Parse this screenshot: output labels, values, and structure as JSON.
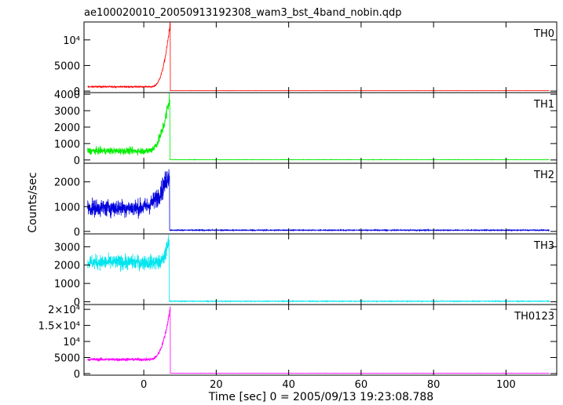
{
  "title": "ae100020010_20050913192308_wam3_bst_4band_nobin.qdp",
  "xlabel": "Time [sec] 0 = 2005/09/13 19:23:08.788",
  "ylabel": "Counts/sec",
  "chart_data": {
    "type": "line",
    "x_range": [
      -16.5,
      114
    ],
    "x_ticks": [
      0,
      20,
      40,
      60,
      80,
      100
    ],
    "x_tick_labels": [
      "0",
      "20",
      "40",
      "60",
      "80",
      "100"
    ],
    "panels": [
      {
        "name": "TH0",
        "color": "#ff0000",
        "y_range": [
          -300,
          13500
        ],
        "y_ticks": [
          0,
          5000,
          10000
        ],
        "y_tick_labels": [
          "0",
          "5000",
          "10⁴"
        ],
        "pre_level": 850,
        "rise_start": 2.0,
        "peak": 13500,
        "peak_time": 7.3,
        "post_level": 80,
        "noise": 120
      },
      {
        "name": "TH1",
        "color": "#00ee00",
        "y_range": [
          -200,
          4100
        ],
        "y_ticks": [
          0,
          1000,
          2000,
          3000,
          4000
        ],
        "y_tick_labels": [
          "0",
          "1000",
          "2000",
          "3000",
          "4000"
        ],
        "pre_level": 550,
        "rise_start": 0.5,
        "peak": 3900,
        "peak_time": 7.2,
        "post_level": 20,
        "noise": 200
      },
      {
        "name": "TH2",
        "color": "#0000dd",
        "y_range": [
          -100,
          2750
        ],
        "y_ticks": [
          0,
          1000,
          2000
        ],
        "y_tick_labels": [
          "0",
          "1000",
          "2000"
        ],
        "pre_level": 950,
        "rise_start": -2,
        "peak": 2400,
        "peak_time": 7.1,
        "post_level": 50,
        "noise": 330
      },
      {
        "name": "TH3",
        "color": "#00e5ee",
        "y_range": [
          -150,
          3700
        ],
        "y_ticks": [
          0,
          1000,
          2000,
          3000
        ],
        "y_tick_labels": [
          "0",
          "1000",
          "2000",
          "3000"
        ],
        "pre_level": 2150,
        "rise_start": 4,
        "peak": 3500,
        "peak_time": 7.0,
        "post_level": 30,
        "noise": 380
      },
      {
        "name": "TH0123",
        "color": "#ff00ff",
        "y_range": [
          -500,
          21500
        ],
        "y_ticks": [
          0,
          5000,
          10000,
          15000,
          20000
        ],
        "y_tick_labels": [
          "0",
          "5000",
          "10⁴",
          "1.5×10⁴",
          "2×10⁴"
        ],
        "pre_level": 4400,
        "rise_start": 1.5,
        "peak": 20500,
        "peak_time": 7.3,
        "post_level": 120,
        "noise": 450
      }
    ]
  }
}
